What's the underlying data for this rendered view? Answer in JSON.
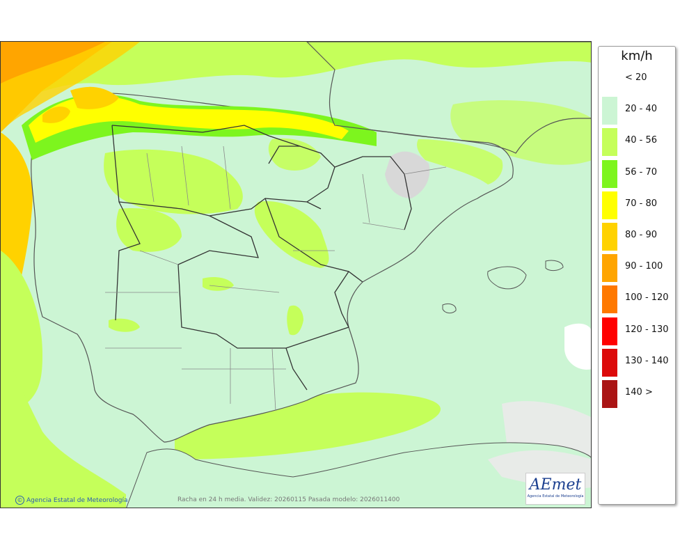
{
  "map": {
    "unit": "km/h",
    "legend": [
      {
        "label": "< 20",
        "color": "#ffffff"
      },
      {
        "label": "20 - 40",
        "color": "#ccf5d4"
      },
      {
        "label": "40 - 56",
        "color": "#c5ff5a"
      },
      {
        "label": "56 - 70",
        "color": "#7df51e"
      },
      {
        "label": "70 - 80",
        "color": "#ffff00"
      },
      {
        "label": "80 - 90",
        "color": "#ffd200"
      },
      {
        "label": "90 - 100",
        "color": "#ffa500"
      },
      {
        "label": "100 - 120",
        "color": "#ff7800"
      },
      {
        "label": "120 - 130",
        "color": "#ff0000"
      },
      {
        "label": "130 - 140",
        "color": "#dc0a0a"
      },
      {
        "label": "140 >",
        "color": "#aa1414"
      }
    ],
    "credit": "Agencia Estatal de Meteorología",
    "credit_symbol": "©",
    "validity": "Racha en 24 h media. Validez: 20260115 Pasada modelo: 2026011400",
    "logo_text": "AEmet",
    "logo_subtext": "Agencia Estatal de Meteorología"
  }
}
